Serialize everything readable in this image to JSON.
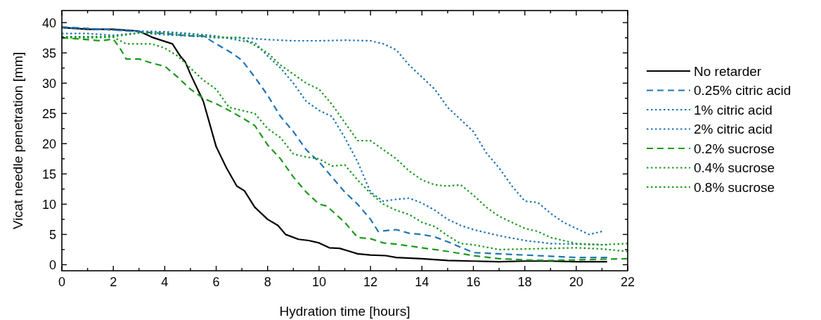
{
  "chart_data": {
    "type": "line",
    "xlabel": "Hydration time [hours]",
    "ylabel": "Vicat needle penetration [mm]",
    "xlim": [
      0,
      22
    ],
    "ylim": [
      -1,
      42
    ],
    "xticks": [
      0,
      {
        "value": 1,
        "label": null
      },
      2,
      {
        "value": 3,
        "label": null
      },
      4,
      {
        "value": 5,
        "label": null
      },
      6,
      {
        "value": 7,
        "label": null
      },
      8,
      {
        "value": 9,
        "label": null
      },
      10,
      {
        "value": 11,
        "label": null
      },
      12,
      {
        "value": 13,
        "label": null
      },
      14,
      {
        "value": 15,
        "label": null
      },
      16,
      {
        "value": 17,
        "label": null
      },
      18,
      {
        "value": 19,
        "label": null
      },
      20,
      {
        "value": 21,
        "label": null
      },
      22
    ],
    "yticks": [
      0,
      {
        "value": 2.5,
        "label": null
      },
      5,
      {
        "value": 7.5,
        "label": null
      },
      10,
      {
        "value": 12.5,
        "label": null
      },
      15,
      {
        "value": 17.5,
        "label": null
      },
      20,
      {
        "value": 22.5,
        "label": null
      },
      25,
      {
        "value": 27.5,
        "label": null
      },
      30,
      {
        "value": 32.5,
        "label": null
      },
      35,
      {
        "value": 37.5,
        "label": null
      },
      40
    ],
    "legend": "right",
    "grid": false,
    "series": [
      {
        "name": "No retarder",
        "color": "#000000",
        "line_style": "solid",
        "x": [
          0,
          1,
          2,
          3,
          3.5,
          4,
          4.3,
          4.6,
          4.8,
          5,
          5.5,
          6,
          6.4,
          6.8,
          7.1,
          7.5,
          8,
          8.4,
          8.7,
          9.2,
          9.6,
          10,
          10.4,
          10.8,
          11.2,
          11.5,
          12,
          12.6,
          13,
          14,
          15,
          16,
          17,
          18,
          19,
          20,
          21.2
        ],
        "values": [
          39.2,
          38.9,
          38.9,
          38.6,
          37.6,
          36.9,
          36.5,
          34.5,
          33.5,
          31.5,
          27,
          19.5,
          16,
          13,
          12.2,
          9.5,
          7.5,
          6.5,
          5,
          4.2,
          4,
          3.6,
          2.8,
          2.7,
          2.2,
          1.8,
          1.6,
          1.5,
          1.2,
          1,
          0.7,
          0.6,
          0.5,
          0.6,
          0.6,
          0.5,
          0.5
        ]
      },
      {
        "name": "0.25% citric acid",
        "color": "#1f73b7",
        "line_style": "dashed",
        "x": [
          0,
          2,
          3,
          4,
          5,
          5.5,
          6,
          6.6,
          7,
          7.5,
          8,
          8.5,
          9,
          9.5,
          10,
          10.5,
          11,
          11.5,
          12,
          12.3,
          13,
          13.5,
          14,
          14.5,
          15,
          16,
          17,
          18,
          19,
          20,
          21.2
        ],
        "values": [
          39.3,
          38.8,
          38.5,
          38.2,
          37.8,
          37.8,
          36.5,
          35,
          33.8,
          31,
          28,
          24.5,
          22,
          19,
          17,
          14.5,
          12,
          10,
          7.5,
          5.5,
          5.8,
          5.2,
          5,
          4.6,
          3.8,
          2,
          1.8,
          1.6,
          1.4,
          1.2,
          1.2
        ]
      },
      {
        "name": "1% citric acid",
        "color": "#1f73b7",
        "line_style": "dotted",
        "x": [
          0,
          2,
          3,
          4,
          5,
          6,
          7,
          7.5,
          8,
          8.5,
          9,
          9.5,
          10,
          10.5,
          11,
          11.5,
          12,
          12.5,
          13,
          13.5,
          14,
          14.5,
          15,
          15.5,
          16,
          17,
          18,
          19,
          20,
          21,
          21.2
        ],
        "values": [
          39.2,
          38.8,
          38.6,
          38.5,
          38.2,
          37.8,
          37,
          36.7,
          34.5,
          32.5,
          30,
          27,
          25.5,
          24.5,
          21,
          17,
          12,
          10.5,
          10.8,
          11,
          10.2,
          9,
          7.5,
          6.5,
          5.8,
          4.8,
          4,
          3.5,
          3.4,
          3.3,
          3.3
        ]
      },
      {
        "name": "2% citric acid",
        "color": "#1f73b7",
        "line_style": "dotted",
        "x": [
          0,
          1,
          2,
          3,
          4,
          5,
          6,
          7,
          8,
          9,
          10,
          11,
          12,
          12.5,
          13,
          13.5,
          14,
          14.5,
          15,
          15.5,
          16,
          16.5,
          17,
          17.5,
          18,
          18.5,
          19,
          19.5,
          20,
          20.5,
          21
        ],
        "values": [
          38.2,
          38.2,
          37.9,
          38.3,
          38,
          37.8,
          37.5,
          37.5,
          37.2,
          37,
          37,
          37.1,
          37,
          36.5,
          35.5,
          33,
          31,
          29,
          26,
          24,
          22,
          18.5,
          16,
          13,
          10.5,
          10.3,
          8.5,
          7,
          6,
          5,
          5.5
        ]
      },
      {
        "name": "0.2% sucrose",
        "color": "#1a9a1a",
        "line_style": "dashed",
        "x": [
          0,
          1,
          1.5,
          2,
          2.3,
          2.5,
          3,
          3.5,
          4,
          4.5,
          5,
          5.5,
          6,
          6.5,
          7,
          7.5,
          8,
          8.5,
          9,
          9.5,
          10,
          10.3,
          11,
          11.5,
          12,
          12.5,
          13,
          14,
          15,
          16,
          17,
          18,
          19,
          20,
          22
        ],
        "values": [
          37.5,
          37.2,
          37,
          37.3,
          35.5,
          34,
          34,
          33.3,
          32.8,
          31,
          29,
          27.5,
          26.6,
          25.5,
          24.3,
          23,
          19.8,
          17.5,
          14.5,
          12,
          10,
          9.7,
          7,
          4.5,
          4.3,
          3.6,
          3.4,
          2.8,
          2.2,
          1.5,
          1,
          0.8,
          0.7,
          0.8,
          1
        ]
      },
      {
        "name": "0.4% sucrose",
        "color": "#1a9a1a",
        "line_style": "dotted",
        "x": [
          0,
          1,
          2,
          2.5,
          3,
          3.5,
          4,
          4.5,
          5,
          5.5,
          6,
          6.5,
          7,
          7.5,
          8,
          8.5,
          9,
          9.5,
          10,
          10.5,
          11,
          11.5,
          12,
          12.5,
          13,
          13.5,
          14,
          14.5,
          15,
          15.5,
          16,
          17,
          18,
          19,
          20,
          21,
          22
        ],
        "values": [
          37.5,
          37.5,
          37.6,
          36.5,
          36.5,
          36.5,
          35.8,
          34.5,
          32.5,
          30.5,
          29,
          26,
          25.5,
          25,
          22.5,
          21,
          18.3,
          17.8,
          17.5,
          16.3,
          16.5,
          14,
          11.8,
          10,
          9,
          8.3,
          7,
          6.3,
          4.8,
          3.5,
          3.3,
          2.5,
          2.6,
          2.7,
          2.8,
          2.6,
          2.2
        ]
      },
      {
        "name": "0.8% sucrose",
        "color": "#1a9a1a",
        "line_style": "dotted",
        "x": [
          0,
          2,
          3,
          4,
          5,
          6,
          7,
          8,
          8.5,
          9,
          9.5,
          10,
          10.5,
          11,
          11.5,
          12,
          12.5,
          13,
          13.5,
          14,
          14.5,
          15,
          15.5,
          16,
          16.5,
          17,
          17.5,
          18,
          18.5,
          19,
          19.5,
          20,
          21,
          22
        ],
        "values": [
          37.7,
          37.7,
          38.3,
          38.3,
          38,
          37.6,
          37.5,
          35,
          33,
          31.5,
          30,
          29,
          26.5,
          23.5,
          20.5,
          20.5,
          19,
          17.5,
          15.5,
          14,
          13.2,
          13,
          13.2,
          11.5,
          9.5,
          8,
          7,
          6,
          5.5,
          4.5,
          4,
          3.5,
          3.3,
          3.5
        ]
      }
    ]
  }
}
